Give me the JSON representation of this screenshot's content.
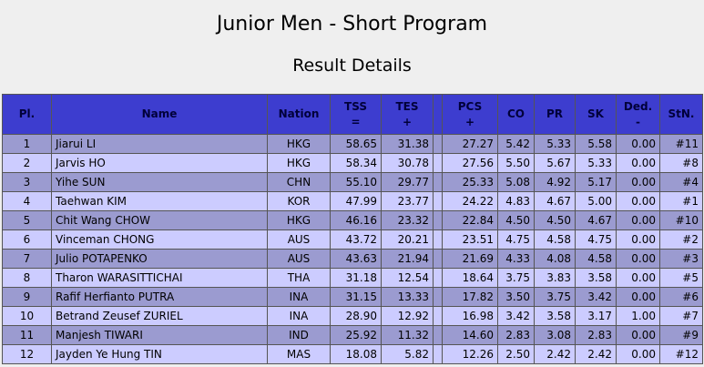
{
  "header": {
    "title": "Junior Men - Short Program",
    "subtitle": "Result Details"
  },
  "table": {
    "headers": [
      "Pl.",
      "Name",
      "Nation",
      {
        "label": "TSS",
        "sign": "="
      },
      {
        "label": "TES",
        "sign": "+"
      },
      "",
      {
        "label": "PCS",
        "sign": "+"
      },
      "CO",
      "PR",
      "SK",
      {
        "label": "Ded.",
        "sign": "-"
      },
      "StN."
    ],
    "rows": [
      [
        "1",
        "Jiarui LI",
        "HKG",
        "58.65",
        "31.38",
        "",
        "27.27",
        "5.42",
        "5.33",
        "5.58",
        "0.00",
        "#11"
      ],
      [
        "2",
        "Jarvis HO",
        "HKG",
        "58.34",
        "30.78",
        "",
        "27.56",
        "5.50",
        "5.67",
        "5.33",
        "0.00",
        "#8"
      ],
      [
        "3",
        "Yihe SUN",
        "CHN",
        "55.10",
        "29.77",
        "",
        "25.33",
        "5.08",
        "4.92",
        "5.17",
        "0.00",
        "#4"
      ],
      [
        "4",
        "Taehwan KIM",
        "KOR",
        "47.99",
        "23.77",
        "",
        "24.22",
        "4.83",
        "4.67",
        "5.00",
        "0.00",
        "#1"
      ],
      [
        "5",
        "Chit Wang CHOW",
        "HKG",
        "46.16",
        "23.32",
        "",
        "22.84",
        "4.50",
        "4.50",
        "4.67",
        "0.00",
        "#10"
      ],
      [
        "6",
        "Vinceman CHONG",
        "AUS",
        "43.72",
        "20.21",
        "",
        "23.51",
        "4.75",
        "4.58",
        "4.75",
        "0.00",
        "#2"
      ],
      [
        "7",
        "Julio POTAPENKO",
        "AUS",
        "43.63",
        "21.94",
        "",
        "21.69",
        "4.33",
        "4.08",
        "4.58",
        "0.00",
        "#3"
      ],
      [
        "8",
        "Tharon WARASITTICHAI",
        "THA",
        "31.18",
        "12.54",
        "",
        "18.64",
        "3.75",
        "3.83",
        "3.58",
        "0.00",
        "#5"
      ],
      [
        "9",
        "Rafif Herfianto PUTRA",
        "INA",
        "31.15",
        "13.33",
        "",
        "17.82",
        "3.50",
        "3.75",
        "3.42",
        "0.00",
        "#6"
      ],
      [
        "10",
        "Betrand Zeusef ZURIEL",
        "INA",
        "28.90",
        "12.92",
        "",
        "16.98",
        "3.42",
        "3.58",
        "3.17",
        "1.00",
        "#7"
      ],
      [
        "11",
        "Manjesh TIWARI",
        "IND",
        "25.92",
        "11.32",
        "",
        "14.60",
        "2.83",
        "3.08",
        "2.83",
        "0.00",
        "#9"
      ],
      [
        "12",
        "Jayden Ye Hung TIN",
        "MAS",
        "18.08",
        "5.82",
        "",
        "12.26",
        "2.50",
        "2.42",
        "2.42",
        "0.00",
        "#12"
      ]
    ]
  }
}
